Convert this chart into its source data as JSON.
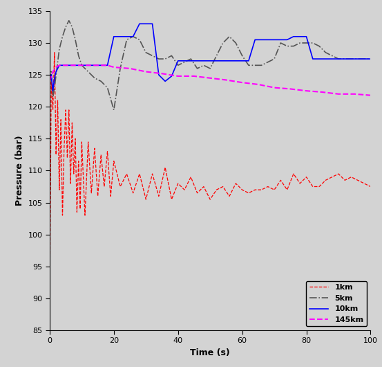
{
  "title": "",
  "xlabel": "Time (s)",
  "ylabel": "Pressure (bar)",
  "xlim": [
    0,
    100
  ],
  "ylim": [
    85,
    135
  ],
  "xticks": [
    0,
    20,
    40,
    60,
    80,
    100
  ],
  "yticks": [
    85,
    90,
    95,
    100,
    105,
    110,
    115,
    120,
    125,
    130,
    135
  ],
  "bg_color": "#d3d3d3",
  "fig_bg_color": "#d3d3d3",
  "series": {
    "1km": {
      "color": "red",
      "linestyle": "--",
      "linewidth": 0.9,
      "x": [
        0.0,
        0.5,
        1.0,
        1.5,
        2.0,
        2.5,
        3.0,
        3.5,
        4.0,
        4.5,
        5.0,
        5.5,
        6.0,
        6.5,
        7.0,
        7.5,
        8.0,
        8.5,
        9.0,
        9.5,
        10.0,
        11.0,
        12.0,
        13.0,
        14.0,
        15.0,
        16.0,
        17.0,
        18.0,
        19.0,
        20.0,
        22.0,
        24.0,
        26.0,
        28.0,
        30.0,
        32.0,
        34.0,
        36.0,
        38.0,
        40.0,
        42.0,
        44.0,
        46.0,
        48.0,
        50.0,
        52.0,
        54.0,
        56.0,
        58.0,
        60.0,
        62.0,
        64.0,
        66.0,
        68.0,
        70.0,
        72.0,
        74.0,
        76.0,
        78.0,
        80.0,
        82.0,
        84.0,
        86.0,
        88.0,
        90.0,
        92.0,
        94.0,
        96.0,
        98.0,
        100.0
      ],
      "y": [
        89.0,
        124.0,
        119.5,
        128.5,
        112.5,
        121.0,
        107.0,
        118.0,
        103.0,
        113.5,
        119.5,
        112.0,
        119.5,
        108.0,
        117.5,
        109.5,
        115.0,
        103.5,
        111.5,
        104.0,
        114.5,
        103.0,
        114.5,
        106.5,
        113.5,
        106.0,
        112.5,
        107.5,
        113.0,
        106.0,
        111.5,
        107.5,
        109.5,
        106.5,
        109.5,
        105.5,
        109.5,
        106.0,
        110.5,
        105.5,
        108.0,
        107.0,
        109.0,
        106.5,
        107.5,
        105.5,
        107.0,
        107.5,
        106.0,
        108.0,
        107.0,
        106.5,
        107.0,
        107.0,
        107.5,
        107.0,
        108.5,
        107.0,
        109.5,
        108.0,
        109.0,
        107.5,
        107.5,
        108.5,
        109.0,
        109.5,
        108.5,
        109.0,
        108.5,
        108.0,
        107.5
      ]
    },
    "5km": {
      "color": "#555555",
      "linestyle": "-.",
      "linewidth": 1.2,
      "x": [
        0.0,
        0.5,
        1.0,
        1.5,
        2.0,
        2.5,
        3.0,
        4.0,
        5.0,
        6.0,
        7.0,
        8.0,
        9.0,
        10.0,
        12.0,
        14.0,
        16.0,
        18.0,
        20.0,
        22.0,
        24.0,
        26.0,
        28.0,
        30.0,
        32.0,
        34.0,
        36.0,
        38.0,
        40.0,
        42.0,
        44.0,
        46.0,
        48.0,
        50.0,
        52.0,
        54.0,
        56.0,
        58.0,
        60.0,
        62.0,
        64.0,
        66.0,
        68.0,
        70.0,
        72.0,
        74.0,
        76.0,
        78.0,
        80.0,
        82.0,
        84.0,
        86.0,
        88.0,
        90.0,
        92.0,
        94.0,
        96.0,
        98.0,
        100.0
      ],
      "y": [
        124.0,
        125.5,
        121.5,
        123.0,
        125.0,
        127.0,
        129.0,
        131.0,
        132.5,
        133.5,
        132.5,
        130.5,
        128.0,
        126.5,
        125.5,
        124.5,
        124.0,
        123.0,
        119.5,
        126.0,
        130.5,
        131.0,
        130.5,
        128.5,
        128.0,
        127.5,
        127.5,
        128.0,
        126.5,
        127.0,
        127.5,
        126.0,
        126.5,
        126.0,
        128.0,
        130.0,
        131.0,
        130.0,
        128.0,
        126.5,
        126.5,
        126.5,
        127.0,
        127.5,
        130.0,
        129.5,
        129.5,
        130.0,
        130.0,
        130.0,
        129.5,
        128.5,
        128.0,
        127.5,
        127.5,
        127.5,
        127.5,
        127.5,
        127.5
      ]
    },
    "10km": {
      "color": "blue",
      "linestyle": "-",
      "linewidth": 1.2,
      "x": [
        0.0,
        0.5,
        1.0,
        1.5,
        2.0,
        3.0,
        4.0,
        5.0,
        6.0,
        7.0,
        8.0,
        10.0,
        12.0,
        14.0,
        16.0,
        18.0,
        20.0,
        22.0,
        24.0,
        26.0,
        28.0,
        30.0,
        32.0,
        34.0,
        36.0,
        38.0,
        40.0,
        42.0,
        44.0,
        46.0,
        48.0,
        50.0,
        52.0,
        54.0,
        56.0,
        58.0,
        60.0,
        62.0,
        64.0,
        66.0,
        68.0,
        70.0,
        72.0,
        74.0,
        76.0,
        78.0,
        80.0,
        82.0,
        84.0,
        86.0,
        88.0,
        90.0,
        92.0,
        94.0,
        96.0,
        98.0,
        100.0
      ],
      "y": [
        124.0,
        125.0,
        122.5,
        124.5,
        125.5,
        126.5,
        126.5,
        126.5,
        126.5,
        126.5,
        126.5,
        126.5,
        126.5,
        126.5,
        126.5,
        126.5,
        131.0,
        131.0,
        131.0,
        131.0,
        133.0,
        133.0,
        133.0,
        125.0,
        124.0,
        124.8,
        127.2,
        127.2,
        127.2,
        127.2,
        127.2,
        127.2,
        127.2,
        127.2,
        127.2,
        127.2,
        127.2,
        127.2,
        130.5,
        130.5,
        130.5,
        130.5,
        130.5,
        130.5,
        131.0,
        131.0,
        131.0,
        127.5,
        127.5,
        127.5,
        127.5,
        127.5,
        127.5,
        127.5,
        127.5,
        127.5,
        127.5
      ]
    },
    "145km": {
      "color": "magenta",
      "linestyle": "--",
      "linewidth": 1.5,
      "x": [
        0.0,
        1.0,
        2.0,
        3.0,
        4.0,
        5.0,
        6.0,
        8.0,
        10.0,
        12.0,
        15.0,
        18.0,
        20.0,
        25.0,
        30.0,
        35.0,
        40.0,
        45.0,
        50.0,
        55.0,
        60.0,
        65.0,
        70.0,
        75.0,
        80.0,
        85.0,
        90.0,
        95.0,
        100.0
      ],
      "y": [
        124.0,
        125.5,
        126.2,
        126.5,
        126.5,
        126.5,
        126.5,
        126.5,
        126.5,
        126.5,
        126.5,
        126.5,
        126.2,
        126.0,
        125.5,
        125.2,
        124.8,
        124.8,
        124.5,
        124.2,
        123.8,
        123.5,
        123.0,
        122.8,
        122.5,
        122.3,
        122.0,
        122.0,
        121.8
      ]
    }
  },
  "legend": {
    "loc": "lower right",
    "fontsize": 8,
    "entries": [
      "1km",
      "5km",
      "10km",
      "145km"
    ]
  }
}
